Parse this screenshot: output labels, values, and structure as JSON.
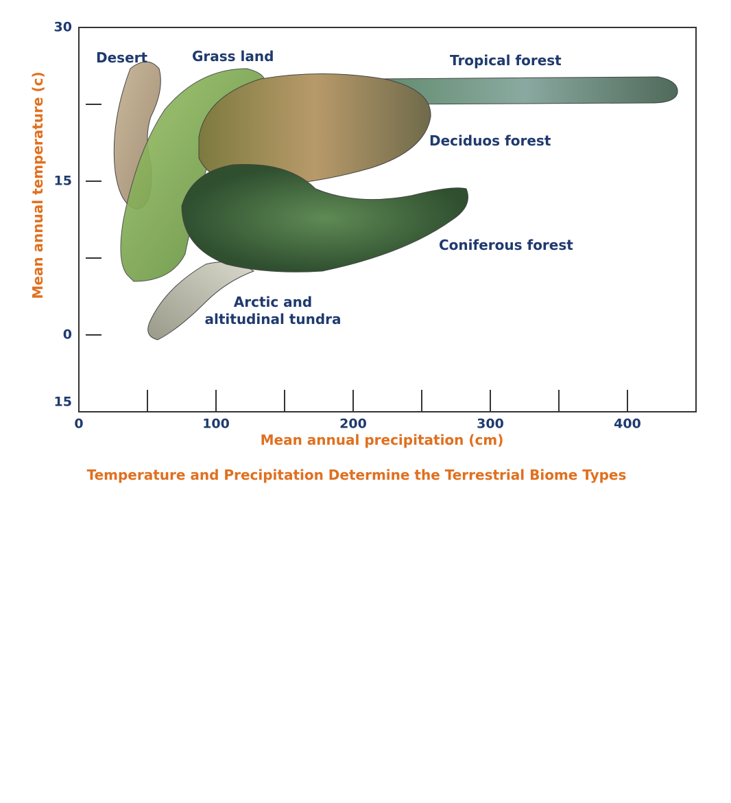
{
  "chart_data": {
    "type": "biome",
    "title": "Temperature and Precipitation Determine the Terrestrial Biome Types",
    "x_label": "Mean annual precipitation (cm)",
    "y_label": "Mean annual temperature (c)",
    "xlim": [
      0,
      450
    ],
    "xticks": [
      0,
      100,
      200,
      300,
      400
    ],
    "xminor": [
      50,
      150,
      250,
      350
    ],
    "ylim": [
      -7.5,
      30
    ],
    "yticks": [
      0,
      15,
      30
    ],
    "yminor": [
      7.5,
      22.5
    ],
    "y_bottom_label": "15",
    "labels": [
      "Desert",
      "Grass land",
      "Tropical forest",
      "Deciduos forest",
      "Coniferous forest",
      "Arctic and",
      "altitudinal tundra"
    ]
  }
}
